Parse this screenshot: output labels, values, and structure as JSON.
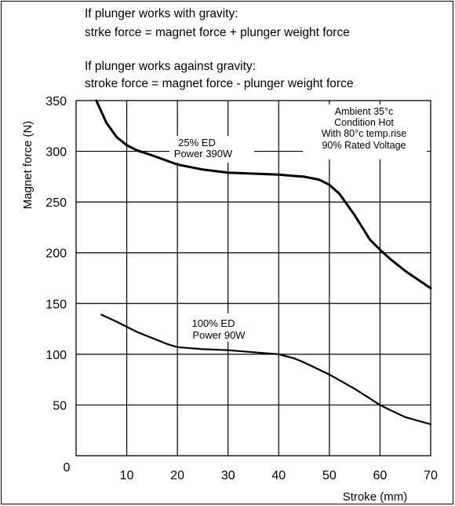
{
  "notes": {
    "with_gravity_heading": "If plunger works with gravity:",
    "with_gravity_formula": "strke force = magnet force + plunger weight force",
    "against_gravity_heading": "If plunger works against gravity:",
    "against_gravity_formula": "stroke force = magnet force - plunger weight force"
  },
  "chart_data": {
    "type": "line",
    "xlabel": "Stroke (mm)",
    "ylabel": "Magnet force (N)",
    "xlim": [
      0,
      70
    ],
    "ylim": [
      0,
      350
    ],
    "x_ticks": [
      "10",
      "20",
      "30",
      "40",
      "50",
      "60",
      "70"
    ],
    "x_origin_label": "0",
    "y_ticks": [
      "50",
      "100",
      "150",
      "200",
      "250",
      "300",
      "350"
    ],
    "grid": true,
    "legend": "none",
    "series": [
      {
        "name": "25% ED\nPower 390W",
        "label_lines": [
          "25% ED",
          "Power 390W"
        ],
        "x": [
          4,
          6,
          8,
          10,
          12,
          15,
          20,
          25,
          30,
          35,
          40,
          45,
          48,
          50,
          52,
          55,
          58,
          60,
          62,
          65,
          70
        ],
        "y": [
          350,
          328,
          314,
          306,
          301,
          296,
          287,
          282,
          279,
          278,
          277,
          275,
          272,
          267,
          258,
          237,
          213,
          203,
          194,
          182,
          165
        ]
      },
      {
        "name": "100% ED\nPower 90W",
        "label_lines": [
          "100% ED",
          "Power 90W"
        ],
        "x": [
          5,
          8,
          10,
          12,
          15,
          18,
          20,
          25,
          30,
          35,
          40,
          43,
          45,
          50,
          55,
          60,
          62,
          65,
          70
        ],
        "y": [
          139,
          132,
          127,
          122,
          116,
          110,
          107,
          105,
          104,
          102,
          100,
          96,
          92,
          80,
          66,
          50,
          45,
          38,
          31
        ]
      }
    ],
    "annotation": {
      "lines": [
        "Ambient 35°c",
        "Condition Hot",
        "With 80°c temp.rise",
        "90% Rated Voltage"
      ]
    }
  }
}
